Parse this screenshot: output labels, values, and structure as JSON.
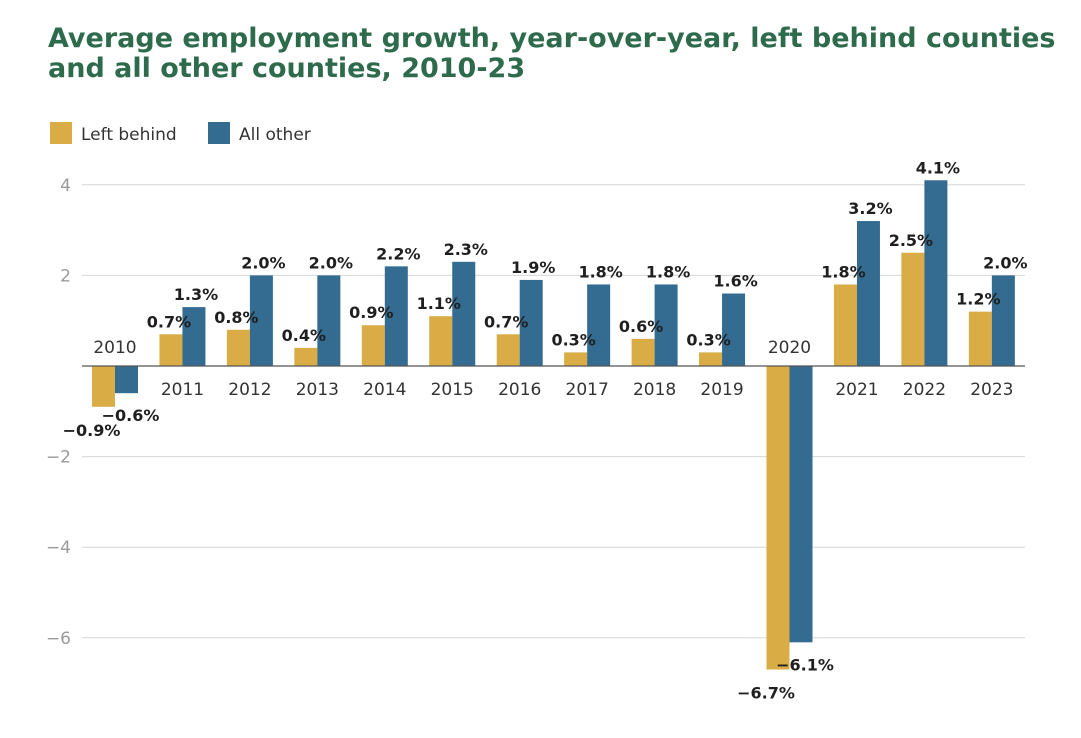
{
  "chart_data": {
    "type": "bar",
    "title": "Average employment growth, year-over-year, left behind counties and all other counties, 2010-23",
    "categories": [
      "2010",
      "2011",
      "2012",
      "2013",
      "2014",
      "2015",
      "2016",
      "2017",
      "2018",
      "2019",
      "2020",
      "2021",
      "2022",
      "2023"
    ],
    "series": [
      {
        "name": "Left behind",
        "color": "#d9ac45",
        "values": [
          -0.9,
          0.7,
          0.8,
          0.4,
          0.9,
          1.1,
          0.7,
          0.3,
          0.6,
          0.3,
          -6.7,
          1.8,
          2.5,
          1.2
        ],
        "labels": [
          "−0.9%",
          "0.7%",
          "0.8%",
          "0.4%",
          "0.9%",
          "1.1%",
          "0.7%",
          "0.3%",
          "0.6%",
          "0.3%",
          "−6.7%",
          "1.8%",
          "2.5%",
          "1.2%"
        ]
      },
      {
        "name": "All other",
        "color": "#336b91",
        "values": [
          -0.6,
          1.3,
          2.0,
          2.0,
          2.2,
          2.3,
          1.9,
          1.8,
          1.8,
          1.6,
          -6.1,
          3.2,
          4.1,
          2.0
        ],
        "labels": [
          "−0.6%",
          "1.3%",
          "2.0%",
          "2.0%",
          "2.2%",
          "2.3%",
          "1.9%",
          "1.8%",
          "1.8%",
          "1.6%",
          "−6.1%",
          "3.2%",
          "4.1%",
          "2.0%"
        ]
      }
    ],
    "yticks": [
      4,
      2,
      -2,
      -4,
      -6
    ],
    "ytick_labels": [
      "4",
      "2",
      "−2",
      "−4",
      "−6"
    ],
    "ylim": [
      -6.7,
      4.1
    ],
    "grid": true,
    "legend": "top-left"
  }
}
